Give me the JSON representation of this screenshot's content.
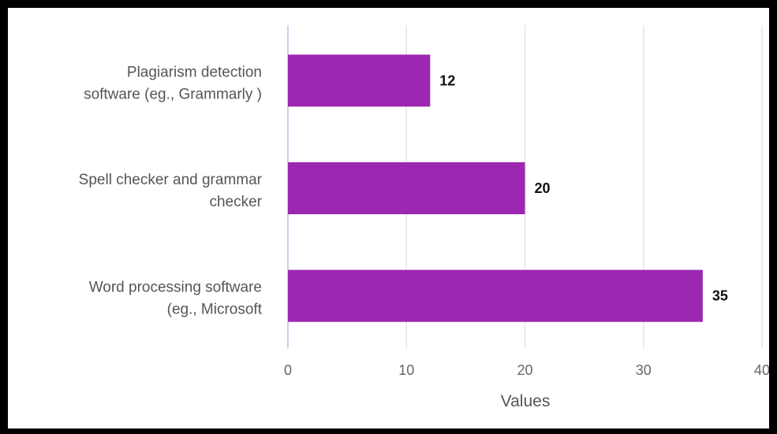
{
  "chart_data": {
    "type": "bar",
    "orientation": "horizontal",
    "categories": [
      "Plagiarism detection software (eg., Grammarly )",
      "Spell checker and grammar checker",
      "Word processing software (eg., Microsoft"
    ],
    "category_lines": [
      [
        "Plagiarism detection",
        "software (eg., Grammarly )"
      ],
      [
        "Spell checker and grammar",
        "checker"
      ],
      [
        "Word processing software",
        "(eg., Microsoft"
      ]
    ],
    "values": [
      12,
      20,
      35
    ],
    "data_labels": [
      "12",
      "20",
      "35"
    ],
    "xlabel": "Values",
    "xlim": [
      0,
      40
    ],
    "ticks": [
      0,
      10,
      20,
      30,
      40
    ],
    "tick_labels": [
      "0",
      "10",
      "20",
      "30",
      "40"
    ],
    "grid": "vertical",
    "bar_color": "#9c27b0",
    "grid_color": "#e3e6ec"
  }
}
